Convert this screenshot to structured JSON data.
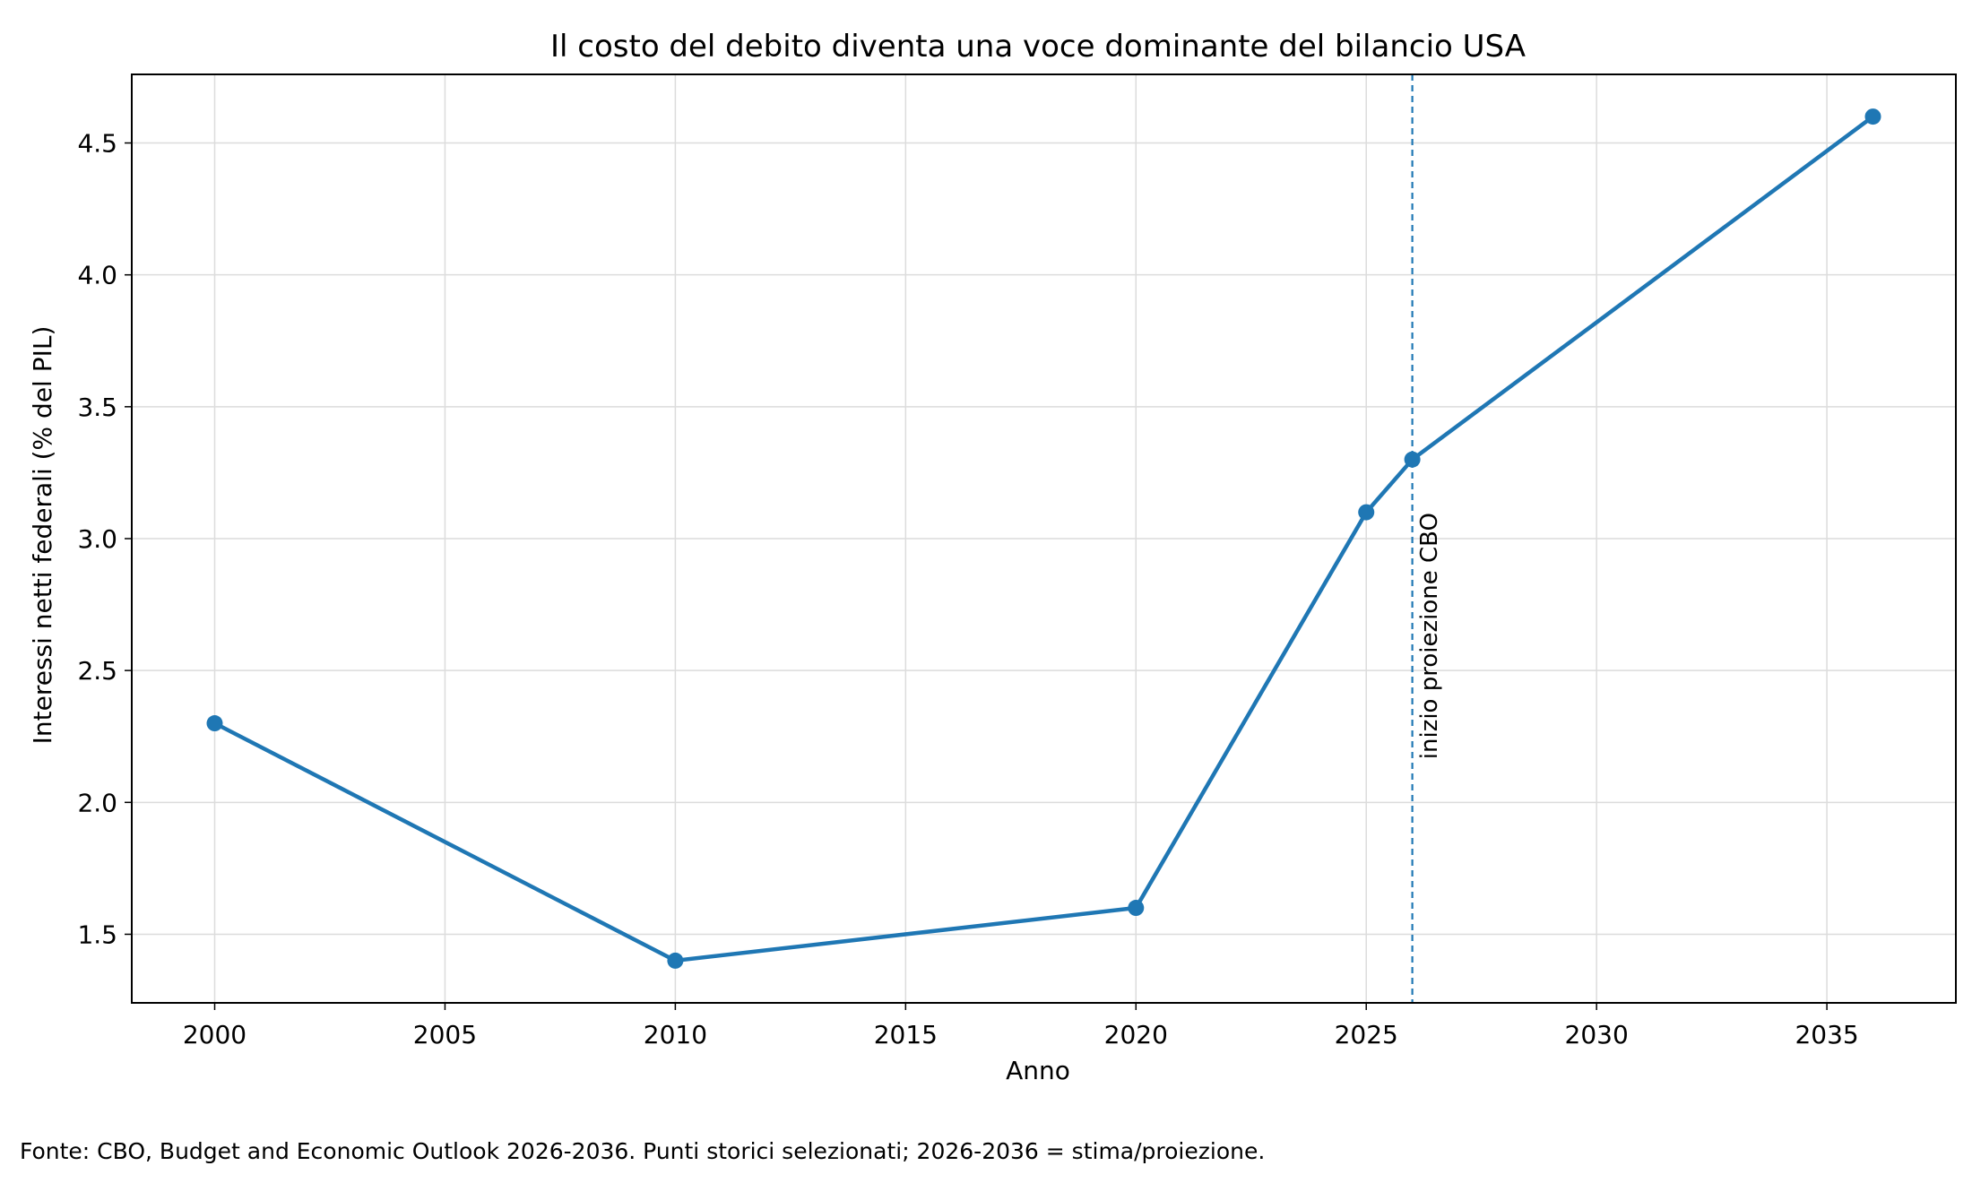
{
  "chart_data": {
    "type": "line",
    "title": "Il costo del debito diventa una voce dominante del bilancio USA",
    "xlabel": "Anno",
    "ylabel": "Interessi netti federali (% del PIL)",
    "xlim": [
      1998.2,
      2037.8
    ],
    "ylim": [
      1.24,
      4.76
    ],
    "x_ticks": [
      2000,
      2005,
      2010,
      2015,
      2020,
      2025,
      2030,
      2035
    ],
    "y_ticks": [
      1.5,
      2.0,
      2.5,
      3.0,
      3.5,
      4.0,
      4.5
    ],
    "x_tick_labels": [
      "2000",
      "2005",
      "2010",
      "2015",
      "2020",
      "2025",
      "2030",
      "2035"
    ],
    "y_tick_labels": [
      "1.5",
      "2.0",
      "2.5",
      "3.0",
      "3.5",
      "4.0",
      "4.5"
    ],
    "grid": true,
    "series": [
      {
        "x": [
          2000,
          2010,
          2020,
          2025,
          2026,
          2036
        ],
        "values": [
          2.3,
          1.4,
          1.6,
          3.1,
          3.3,
          4.6
        ],
        "color": "#1f77b4",
        "marker": "circle"
      }
    ],
    "annotations": [
      {
        "type": "vertical-dashed-line",
        "x": 2026,
        "label": "inizio proiezione CBO",
        "color": "#1f77b4"
      }
    ],
    "source_note": "Fonte: CBO, Budget and Economic Outlook 2026-2036. Punti storici selezionati; 2026-2036 = stima/proiezione."
  }
}
